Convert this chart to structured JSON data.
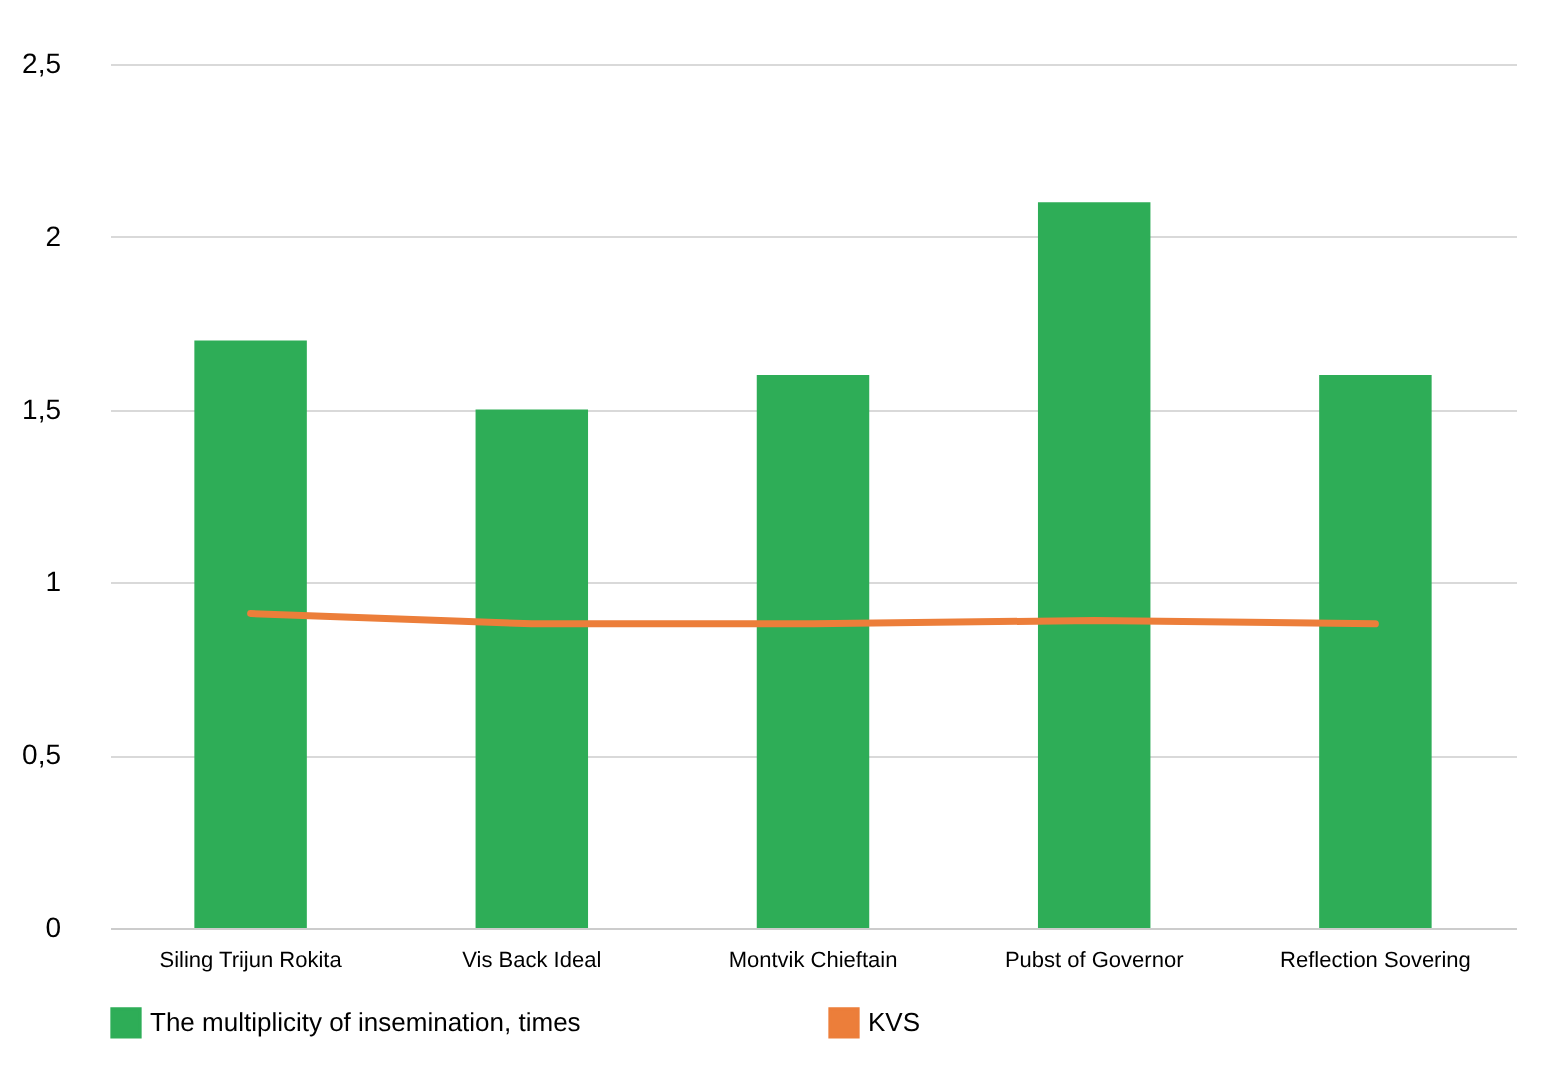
{
  "chart_data": {
    "type": "bar",
    "categories": [
      "Siling Trijun Rokita",
      "Vis Back Ideal",
      "Montvik Chieftain",
      "Pubst of  Governor",
      "Reflection Sovering"
    ],
    "series": [
      {
        "name": "The multiplicity of insemination, times",
        "color": "#2ead57",
        "values": [
          1.7,
          1.5,
          1.6,
          2.1,
          1.6
        ]
      },
      {
        "name": "KVS",
        "type": "line",
        "color": "#ec7e3a",
        "values": [
          0.91,
          0.88,
          0.88,
          0.89,
          0.88
        ]
      }
    ],
    "ylim": [
      0,
      2.5
    ],
    "yticks": [
      0,
      {
        "value": 0.5,
        "label": "0,5"
      },
      1,
      {
        "value": 1.5,
        "label": "1,5"
      },
      2,
      {
        "value": 2.5,
        "label": "2,5"
      }
    ],
    "grid": "y",
    "legend": "bottom"
  }
}
